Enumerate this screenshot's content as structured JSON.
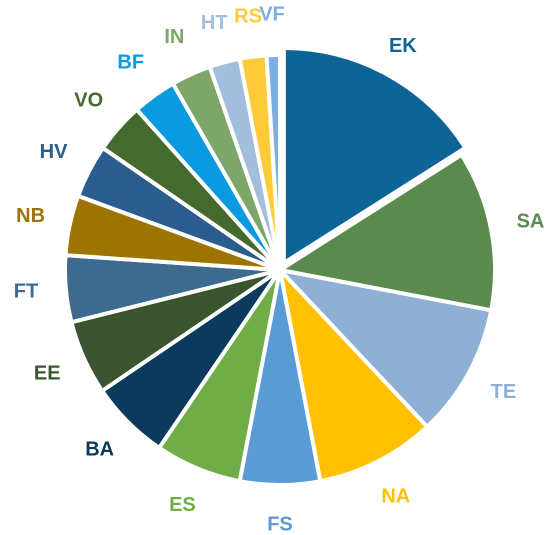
{
  "chart_data": {
    "type": "pie",
    "categories": [
      "EK",
      "SA",
      "TE",
      "NA",
      "FS",
      "ES",
      "BA",
      "EE",
      "FT",
      "NB",
      "HV",
      "VO",
      "BF",
      "IN",
      "HT",
      "RS",
      "VF"
    ],
    "values": [
      16,
      12,
      10,
      9,
      6,
      6.5,
      6,
      5.6,
      5,
      4.5,
      4,
      3.8,
      3.3,
      3,
      2.3,
      2,
      1
    ],
    "colors": [
      "#0F6496",
      "#5B8A4F",
      "#8EB0D4",
      "#FFC000",
      "#5B9BD5",
      "#70AD47",
      "#0B3A5C",
      "#3A5430",
      "#3E6A8E",
      "#9E7400",
      "#2A5C8E",
      "#456A2E",
      "#0A9AE0",
      "#7EA66A",
      "#A3BEDC",
      "#FFCA3A",
      "#7FAEE0"
    ]
  }
}
